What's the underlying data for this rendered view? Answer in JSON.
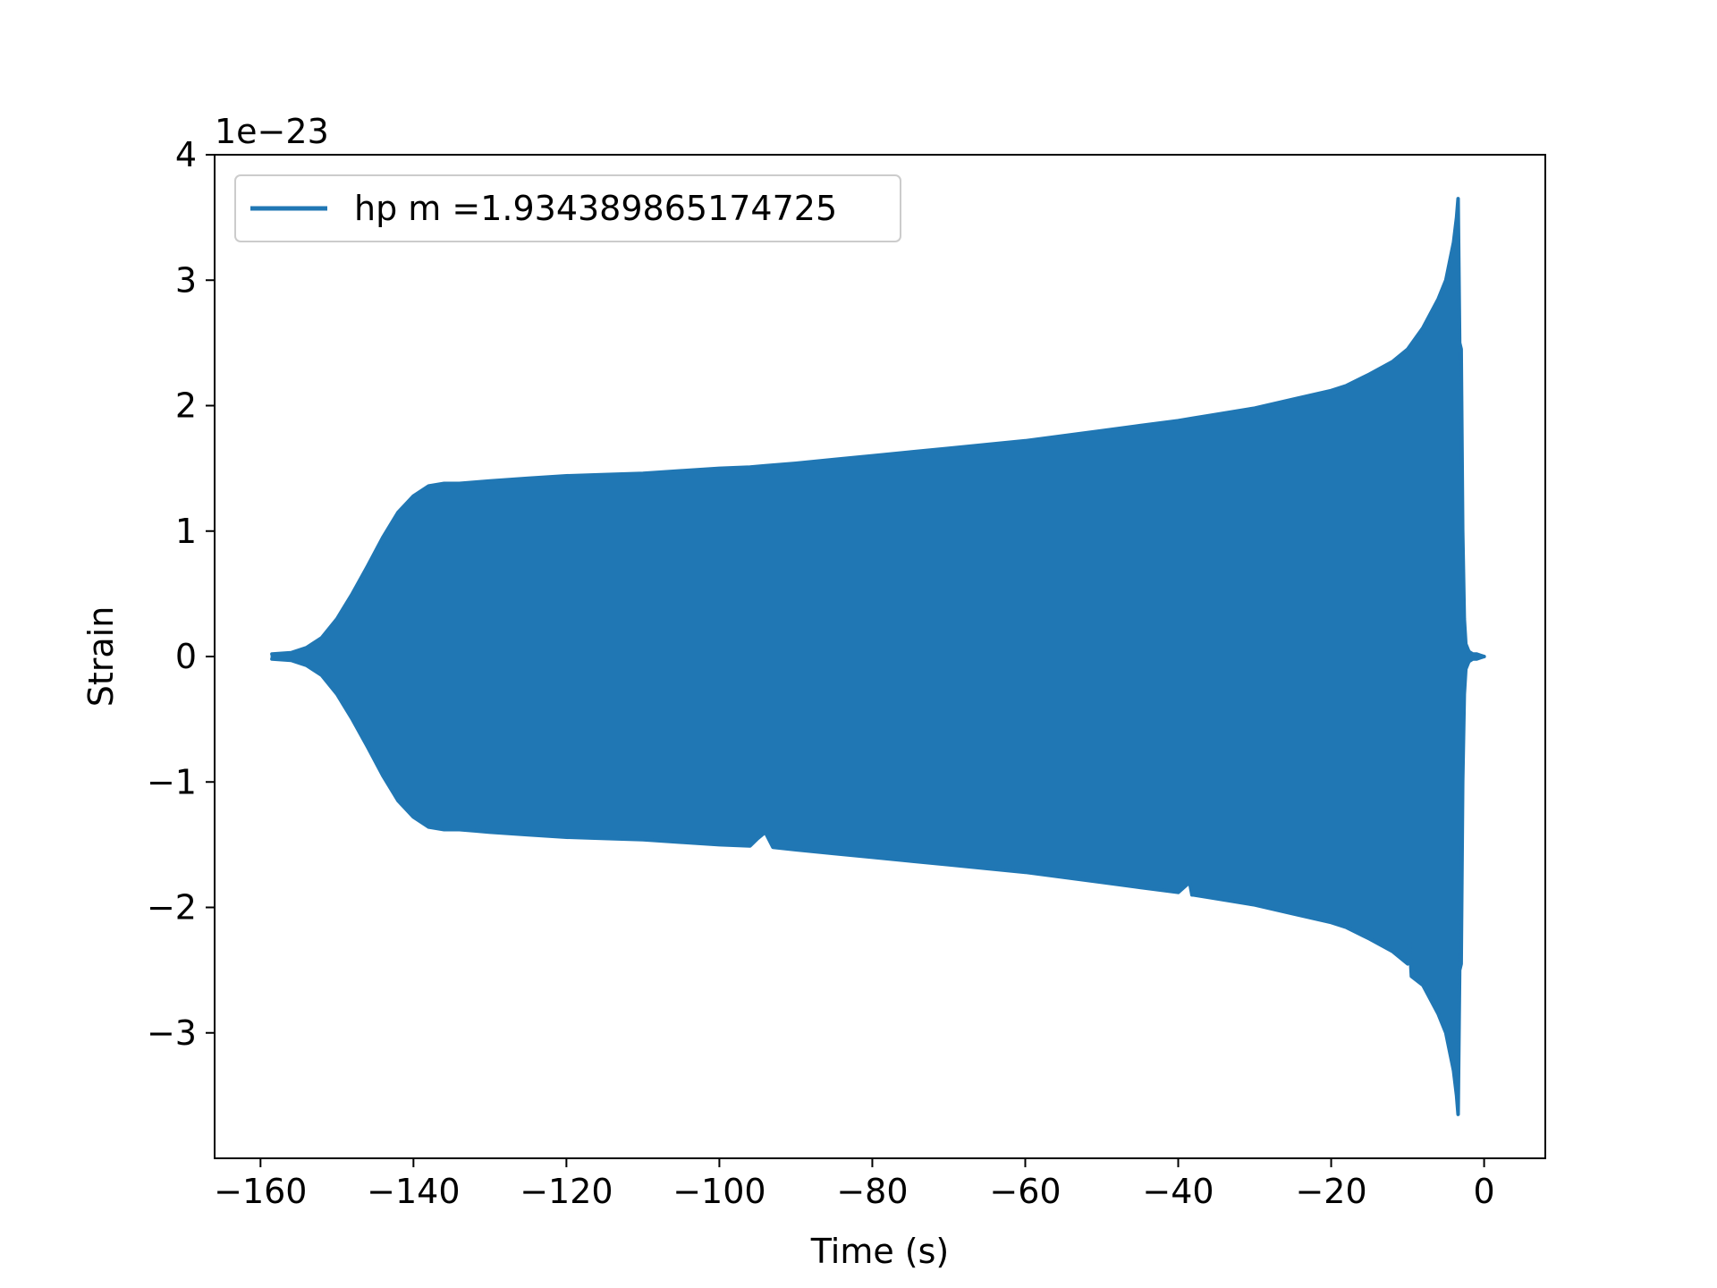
{
  "figure": {
    "background": "#ffffff"
  },
  "chart_data": {
    "type": "line",
    "title": "",
    "xlabel": "Time (s)",
    "ylabel": "Strain",
    "y_scale_label": "1e−23",
    "xlim": [
      -166,
      8
    ],
    "ylim": [
      -4,
      4
    ],
    "xticks": [
      -160,
      -140,
      -120,
      -100,
      -80,
      -60,
      -40,
      -20,
      0
    ],
    "xtick_labels": [
      "−160",
      "−140",
      "−120",
      "−100",
      "−80",
      "−60",
      "−40",
      "−20",
      "0"
    ],
    "yticks": [
      -3,
      -2,
      -1,
      0,
      1,
      2,
      3,
      4
    ],
    "ytick_labels": [
      "−3",
      "−2",
      "−1",
      "0",
      "1",
      "2",
      "3",
      "4"
    ],
    "grid": false,
    "legend_position": "upper-left",
    "series": [
      {
        "name": "hp m =1.934389865174725",
        "color": "#2077b4",
        "style": "oscillating waveform envelope (filled by dense oscillation)",
        "envelope_upper": {
          "x": [
            -158.5,
            -156,
            -154,
            -152,
            -150,
            -148,
            -146,
            -144,
            -142,
            -140,
            -138,
            -136,
            -134,
            -132,
            -130,
            -125,
            -120,
            -115,
            -110,
            -105,
            -100,
            -96,
            -94,
            -92,
            -90,
            -85,
            -80,
            -75,
            -70,
            -65,
            -60,
            -55,
            -50,
            -45,
            -40,
            -38,
            -36,
            -30,
            -25,
            -20,
            -18,
            -15,
            -12,
            -10,
            -8,
            -6,
            -5,
            -4.5,
            -4,
            -3.6,
            -3.4,
            -3.2,
            -3.0,
            -2.8,
            -2.6,
            -2.4,
            -2.0,
            -1.5,
            -1.0,
            -0.5,
            0
          ],
          "y": [
            0.02,
            0.03,
            0.07,
            0.15,
            0.3,
            0.5,
            0.72,
            0.95,
            1.15,
            1.28,
            1.36,
            1.38,
            1.38,
            1.39,
            1.4,
            1.42,
            1.44,
            1.45,
            1.46,
            1.48,
            1.5,
            1.51,
            1.52,
            1.53,
            1.54,
            1.57,
            1.6,
            1.63,
            1.66,
            1.69,
            1.72,
            1.76,
            1.8,
            1.84,
            1.88,
            1.9,
            1.92,
            1.98,
            2.05,
            2.12,
            2.16,
            2.25,
            2.35,
            2.45,
            2.62,
            2.85,
            3.0,
            3.15,
            3.3,
            3.5,
            3.65,
            2.5,
            2.45,
            1.0,
            0.3,
            0.1,
            0.04,
            0.02,
            0.02,
            0.01,
            0.0
          ]
        },
        "envelope_lower": {
          "x": [
            -158.5,
            -156,
            -154,
            -152,
            -150,
            -148,
            -146,
            -144,
            -142,
            -140,
            -138,
            -136,
            -134,
            -132,
            -130,
            -125,
            -120,
            -115,
            -110,
            -105,
            -100,
            -96,
            -95,
            -94,
            -93,
            -90,
            -85,
            -80,
            -75,
            -70,
            -65,
            -60,
            -55,
            -50,
            -45,
            -40,
            -38.5,
            -38.2,
            -38,
            -36,
            -30,
            -25,
            -20,
            -18,
            -15,
            -12,
            -10,
            -9.8,
            -9.5,
            -8,
            -6,
            -5,
            -4.5,
            -4,
            -3.6,
            -3.4,
            -3.2,
            -3.0,
            -2.8,
            -2.6,
            -2.4,
            -2.0,
            -1.5,
            -1.0,
            -0.5,
            0
          ],
          "y": [
            -0.02,
            -0.03,
            -0.07,
            -0.15,
            -0.3,
            -0.5,
            -0.72,
            -0.95,
            -1.15,
            -1.28,
            -1.36,
            -1.38,
            -1.38,
            -1.39,
            -1.4,
            -1.42,
            -1.44,
            -1.45,
            -1.46,
            -1.48,
            -1.5,
            -1.51,
            -1.45,
            -1.4,
            -1.52,
            -1.54,
            -1.57,
            -1.6,
            -1.63,
            -1.66,
            -1.69,
            -1.72,
            -1.76,
            -1.8,
            -1.84,
            -1.88,
            -1.8,
            -1.9,
            -1.9,
            -1.92,
            -1.98,
            -2.05,
            -2.12,
            -2.16,
            -2.25,
            -2.35,
            -2.45,
            -2.25,
            -2.55,
            -2.62,
            -2.85,
            -3.0,
            -3.15,
            -3.3,
            -3.5,
            -3.65,
            -2.5,
            -2.45,
            -1.0,
            -0.3,
            -0.1,
            -0.04,
            -0.02,
            -0.02,
            -0.01,
            0.0
          ]
        }
      }
    ]
  }
}
